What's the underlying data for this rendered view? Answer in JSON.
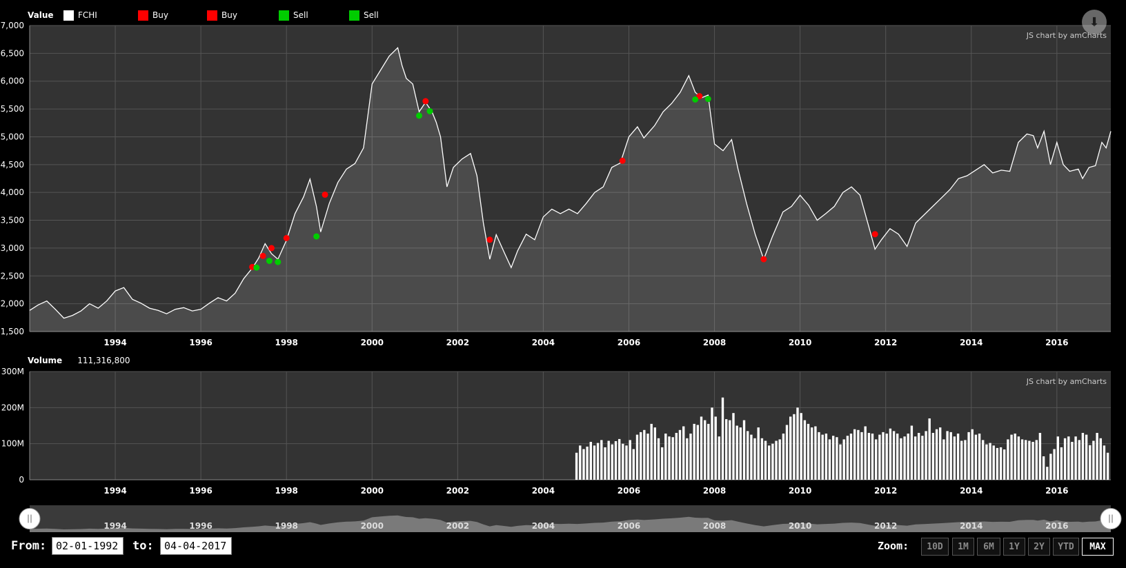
{
  "legend": {
    "value_label": "Value",
    "items": [
      {
        "label": "FCHI",
        "color": "#ffffff"
      },
      {
        "label": "Buy",
        "color": "#ff0000"
      },
      {
        "label": "Buy",
        "color": "#ff0000"
      },
      {
        "label": "Sell",
        "color": "#00cc00"
      },
      {
        "label": "Sell",
        "color": "#00cc00"
      }
    ]
  },
  "credit": "JS chart by amCharts",
  "volume_header": {
    "label": "Volume",
    "value": "111,316,800"
  },
  "period": {
    "from_label": "From:",
    "from": "02-01-1992",
    "to_label": "to:",
    "to": "04-04-2017"
  },
  "zoom": {
    "label": "Zoom:",
    "buttons": [
      "10D",
      "1M",
      "6M",
      "1Y",
      "2Y",
      "YTD",
      "MAX"
    ],
    "active": "MAX"
  },
  "download_icon": "download-icon",
  "chart_data": [
    {
      "type": "line",
      "series_name": "FCHI",
      "x_unit": "year",
      "xlim": [
        1992.0,
        2017.26
      ],
      "ylim": [
        1500,
        7000
      ],
      "y_ticks": [
        "1,500",
        "2,000",
        "2,500",
        "3,000",
        "3,500",
        "4,000",
        "4,500",
        "5,000",
        "5,500",
        "6,000",
        "6,500",
        "7,000"
      ],
      "x_ticks": [
        "1994",
        "1996",
        "1998",
        "2000",
        "2002",
        "2004",
        "2006",
        "2008",
        "2010",
        "2012",
        "2014",
        "2016"
      ],
      "grid": true,
      "points": [
        [
          1992.0,
          1880
        ],
        [
          1992.2,
          1980
        ],
        [
          1992.4,
          2050
        ],
        [
          1992.6,
          1900
        ],
        [
          1992.8,
          1740
        ],
        [
          1993.0,
          1790
        ],
        [
          1993.2,
          1870
        ],
        [
          1993.4,
          2000
        ],
        [
          1993.6,
          1920
        ],
        [
          1993.8,
          2050
        ],
        [
          1994.0,
          2230
        ],
        [
          1994.2,
          2290
        ],
        [
          1994.4,
          2080
        ],
        [
          1994.6,
          2010
        ],
        [
          1994.8,
          1920
        ],
        [
          1995.0,
          1880
        ],
        [
          1995.2,
          1820
        ],
        [
          1995.4,
          1900
        ],
        [
          1995.6,
          1930
        ],
        [
          1995.8,
          1870
        ],
        [
          1996.0,
          1900
        ],
        [
          1996.2,
          2010
        ],
        [
          1996.4,
          2110
        ],
        [
          1996.6,
          2050
        ],
        [
          1996.8,
          2190
        ],
        [
          1997.0,
          2450
        ],
        [
          1997.2,
          2640
        ],
        [
          1997.35,
          2820
        ],
        [
          1997.5,
          3080
        ],
        [
          1997.65,
          2900
        ],
        [
          1997.8,
          2800
        ],
        [
          1998.0,
          3140
        ],
        [
          1998.2,
          3620
        ],
        [
          1998.4,
          3920
        ],
        [
          1998.55,
          4240
        ],
        [
          1998.7,
          3750
        ],
        [
          1998.8,
          3290
        ],
        [
          1999.0,
          3800
        ],
        [
          1999.2,
          4180
        ],
        [
          1999.4,
          4420
        ],
        [
          1999.6,
          4520
        ],
        [
          1999.8,
          4800
        ],
        [
          2000.0,
          5950
        ],
        [
          2000.2,
          6200
        ],
        [
          2000.4,
          6450
        ],
        [
          2000.6,
          6600
        ],
        [
          2000.7,
          6280
        ],
        [
          2000.8,
          6050
        ],
        [
          2000.95,
          5950
        ],
        [
          2001.1,
          5450
        ],
        [
          2001.25,
          5620
        ],
        [
          2001.4,
          5450
        ],
        [
          2001.5,
          5260
        ],
        [
          2001.6,
          5000
        ],
        [
          2001.75,
          4100
        ],
        [
          2001.9,
          4450
        ],
        [
          2002.1,
          4600
        ],
        [
          2002.3,
          4700
        ],
        [
          2002.45,
          4300
        ],
        [
          2002.6,
          3450
        ],
        [
          2002.75,
          2800
        ],
        [
          2002.9,
          3240
        ],
        [
          2003.1,
          2900
        ],
        [
          2003.25,
          2650
        ],
        [
          2003.4,
          2950
        ],
        [
          2003.6,
          3250
        ],
        [
          2003.8,
          3150
        ],
        [
          2004.0,
          3560
        ],
        [
          2004.2,
          3700
        ],
        [
          2004.4,
          3620
        ],
        [
          2004.6,
          3700
        ],
        [
          2004.8,
          3620
        ],
        [
          2005.0,
          3800
        ],
        [
          2005.2,
          4000
        ],
        [
          2005.4,
          4100
        ],
        [
          2005.6,
          4450
        ],
        [
          2005.8,
          4530
        ],
        [
          2006.0,
          5000
        ],
        [
          2006.2,
          5180
        ],
        [
          2006.35,
          4980
        ],
        [
          2006.6,
          5200
        ],
        [
          2006.8,
          5450
        ],
        [
          2007.0,
          5600
        ],
        [
          2007.2,
          5800
        ],
        [
          2007.4,
          6100
        ],
        [
          2007.55,
          5800
        ],
        [
          2007.7,
          5700
        ],
        [
          2007.85,
          5750
        ],
        [
          2008.0,
          4870
        ],
        [
          2008.2,
          4750
        ],
        [
          2008.4,
          4950
        ],
        [
          2008.55,
          4420
        ],
        [
          2008.75,
          3800
        ],
        [
          2008.95,
          3250
        ],
        [
          2009.15,
          2800
        ],
        [
          2009.35,
          3200
        ],
        [
          2009.6,
          3650
        ],
        [
          2009.8,
          3750
        ],
        [
          2010.0,
          3950
        ],
        [
          2010.2,
          3770
        ],
        [
          2010.4,
          3500
        ],
        [
          2010.6,
          3620
        ],
        [
          2010.8,
          3750
        ],
        [
          2011.0,
          4000
        ],
        [
          2011.2,
          4100
        ],
        [
          2011.4,
          3950
        ],
        [
          2011.6,
          3400
        ],
        [
          2011.75,
          2980
        ],
        [
          2011.9,
          3150
        ],
        [
          2012.1,
          3350
        ],
        [
          2012.3,
          3250
        ],
        [
          2012.5,
          3030
        ],
        [
          2012.7,
          3450
        ],
        [
          2012.9,
          3600
        ],
        [
          2013.1,
          3750
        ],
        [
          2013.3,
          3900
        ],
        [
          2013.5,
          4050
        ],
        [
          2013.7,
          4250
        ],
        [
          2013.9,
          4300
        ],
        [
          2014.1,
          4400
        ],
        [
          2014.3,
          4500
        ],
        [
          2014.5,
          4350
        ],
        [
          2014.7,
          4400
        ],
        [
          2014.9,
          4380
        ],
        [
          2015.1,
          4900
        ],
        [
          2015.3,
          5050
        ],
        [
          2015.45,
          5020
        ],
        [
          2015.55,
          4800
        ],
        [
          2015.7,
          5100
        ],
        [
          2015.85,
          4500
        ],
        [
          2016.0,
          4900
        ],
        [
          2016.15,
          4500
        ],
        [
          2016.3,
          4380
        ],
        [
          2016.5,
          4420
        ],
        [
          2016.6,
          4250
        ],
        [
          2016.75,
          4450
        ],
        [
          2016.9,
          4480
        ],
        [
          2017.05,
          4900
        ],
        [
          2017.15,
          4800
        ],
        [
          2017.26,
          5100
        ]
      ],
      "markers": [
        {
          "label": "Buy",
          "color": "#ff0000",
          "points": [
            [
              1997.2,
              2660
            ],
            [
              1997.45,
              2860
            ],
            [
              1997.65,
              3000
            ],
            [
              1998.0,
              3180
            ],
            [
              1998.9,
              3960
            ],
            [
              2001.25,
              5640
            ],
            [
              2002.75,
              3150
            ],
            [
              2005.85,
              4570
            ],
            [
              2007.65,
              5730
            ],
            [
              2009.15,
              2800
            ],
            [
              2011.75,
              3250
            ]
          ]
        },
        {
          "label": "Sell",
          "color": "#00cc00",
          "points": [
            [
              1997.3,
              2650
            ],
            [
              1997.6,
              2770
            ],
            [
              1997.8,
              2750
            ],
            [
              1998.7,
              3210
            ],
            [
              2001.1,
              5380
            ],
            [
              2001.35,
              5460
            ],
            [
              2007.55,
              5670
            ],
            [
              2007.85,
              5680
            ]
          ]
        }
      ]
    },
    {
      "type": "bar",
      "series_name": "Volume",
      "x_unit": "year",
      "xlim": [
        1992.0,
        2017.26
      ],
      "ylim": [
        0,
        300000000
      ],
      "y_ticks": [
        "0",
        "100M",
        "200M",
        "300M"
      ],
      "x_ticks": [
        "1994",
        "1996",
        "1998",
        "2000",
        "2002",
        "2004",
        "2006",
        "2008",
        "2010",
        "2012",
        "2014",
        "2016"
      ],
      "grid": true,
      "start": 2004.75,
      "step": 0.0833,
      "values_millions": [
        75,
        95,
        85,
        92,
        105,
        95,
        102,
        110,
        90,
        108,
        98,
        107,
        113,
        100,
        95,
        110,
        85,
        125,
        132,
        138,
        128,
        155,
        145,
        115,
        90,
        128,
        120,
        118,
        130,
        138,
        148,
        115,
        128,
        155,
        152,
        175,
        165,
        155,
        200,
        175,
        120,
        228,
        168,
        165,
        185,
        150,
        145,
        165,
        135,
        125,
        115,
        145,
        115,
        108,
        95,
        100,
        108,
        112,
        128,
        152,
        175,
        182,
        200,
        185,
        165,
        155,
        145,
        148,
        132,
        125,
        128,
        112,
        122,
        118,
        98,
        112,
        122,
        128,
        140,
        138,
        132,
        148,
        130,
        128,
        112,
        125,
        132,
        128,
        142,
        135,
        128,
        115,
        120,
        128,
        150,
        120,
        130,
        122,
        135,
        170,
        130,
        140,
        145,
        112,
        135,
        132,
        120,
        128,
        108,
        110,
        132,
        140,
        125,
        128,
        110,
        98,
        102,
        95,
        88,
        90,
        84,
        112,
        125,
        128,
        120,
        112,
        110,
        108,
        105,
        110,
        130,
        65,
        36,
        72,
        85,
        120,
        90,
        115,
        120,
        105,
        120,
        110,
        130,
        125,
        96,
        108,
        130,
        115,
        95,
        75,
        90,
        105,
        100,
        95,
        112,
        95,
        80,
        88,
        92,
        102,
        98,
        110,
        95,
        112,
        108,
        100,
        115,
        120,
        102,
        100,
        118,
        140,
        115,
        118,
        105,
        110,
        115,
        120,
        118,
        98,
        130,
        95,
        105,
        108,
        112,
        125,
        112,
        118,
        122,
        110,
        115,
        108,
        102,
        95,
        85,
        100,
        105,
        110,
        95,
        90,
        102,
        115,
        120,
        110
      ]
    }
  ]
}
